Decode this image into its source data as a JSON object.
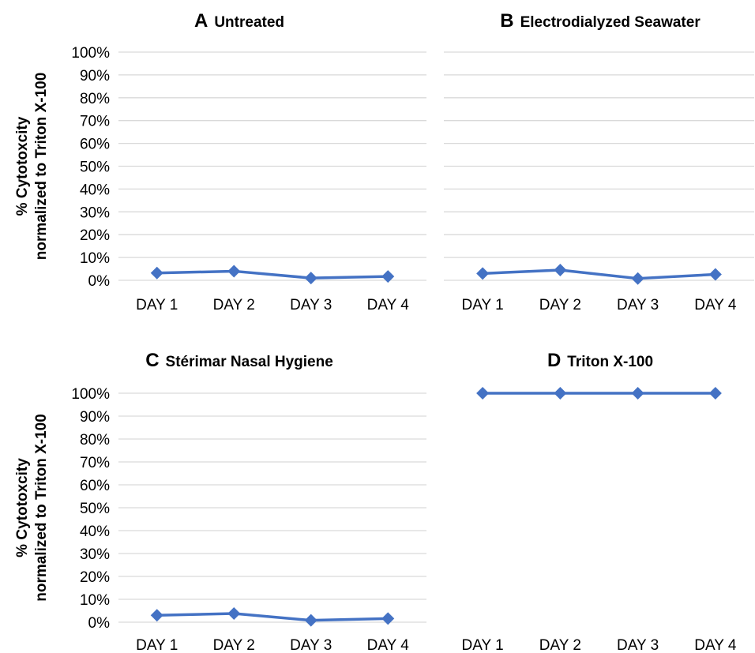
{
  "chart_data": [
    {
      "type": "line",
      "panel_letter": "A",
      "title": "Untreated",
      "ylabel": [
        "% Cytotoxcity",
        "normalized to Triton X-100"
      ],
      "categories": [
        "DAY 1",
        "DAY 2",
        "DAY 3",
        "DAY 4"
      ],
      "yticks": [
        "0%",
        "10%",
        "20%",
        "30%",
        "40%",
        "50%",
        "60%",
        "70%",
        "80%",
        "90%",
        "100%"
      ],
      "ylim": [
        0,
        100
      ],
      "grid": true,
      "series": [
        {
          "values": [
            3.2,
            4.0,
            1.0,
            1.7
          ],
          "color": "#4472c4"
        }
      ]
    },
    {
      "type": "line",
      "panel_letter": "B",
      "title": "Electrodialyzed Seawater",
      "categories": [
        "DAY 1",
        "DAY 2",
        "DAY 3",
        "DAY 4"
      ],
      "ylim": [
        0,
        100
      ],
      "grid": true,
      "series": [
        {
          "values": [
            3.0,
            4.5,
            0.8,
            2.6
          ],
          "color": "#4472c4"
        }
      ]
    },
    {
      "type": "line",
      "panel_letter": "C",
      "title": "Stérimar Nasal Hygiene",
      "ylabel": [
        "% Cytotoxcity",
        "normalized to Triton X-100"
      ],
      "categories": [
        "DAY 1",
        "DAY 2",
        "DAY 3",
        "DAY 4"
      ],
      "yticks": [
        "0%",
        "10%",
        "20%",
        "30%",
        "40%",
        "50%",
        "60%",
        "70%",
        "80%",
        "90%",
        "100%"
      ],
      "ylim": [
        0,
        100
      ],
      "grid": true,
      "series": [
        {
          "values": [
            3.0,
            3.8,
            0.8,
            1.6
          ],
          "color": "#4472c4"
        }
      ]
    },
    {
      "type": "line",
      "panel_letter": "D",
      "title": "Triton X-100",
      "categories": [
        "DAY 1",
        "DAY 2",
        "DAY 3",
        "DAY 4"
      ],
      "ylim": [
        0,
        100
      ],
      "grid": false,
      "series": [
        {
          "values": [
            100,
            100,
            100,
            100
          ],
          "color": "#4472c4"
        }
      ]
    }
  ]
}
